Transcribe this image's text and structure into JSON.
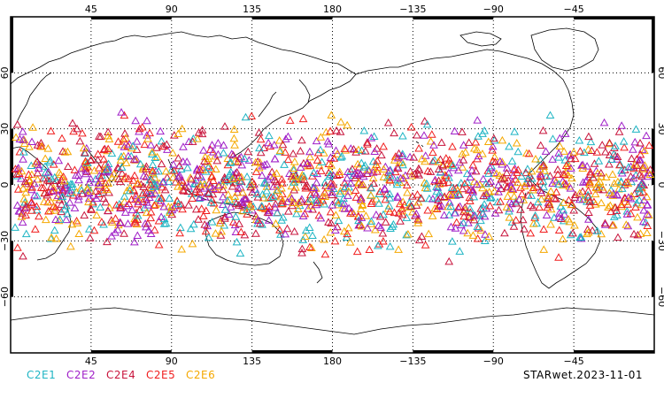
{
  "map": {
    "projection": "cylindrical-equidistant",
    "center_longitude": 180,
    "lon_range": [
      0,
      360
    ],
    "lat_range": [
      -90,
      90
    ],
    "gridlines": "dotted",
    "top_tick_labels": [
      "45",
      "90",
      "135",
      "180",
      "−135",
      "−90",
      "−45"
    ],
    "bottom_tick_labels": [
      "45",
      "90",
      "135",
      "180",
      "−135",
      "−90",
      "−45"
    ],
    "left_tick_labels": [
      "60",
      "30",
      "0",
      "−30",
      "−60"
    ],
    "right_tick_labels": [
      "60",
      "30",
      "0",
      "−30",
      "−60"
    ],
    "marker_shape": "open-triangle",
    "observation_band_lat": [
      -45,
      45
    ]
  },
  "legend": [
    {
      "label": "C2E1",
      "color": "#1fb5c4"
    },
    {
      "label": "C2E2",
      "color": "#a020c8"
    },
    {
      "label": "C2E4",
      "color": "#c8143c"
    },
    {
      "label": "C2E5",
      "color": "#f01e1e"
    },
    {
      "label": "C2E6",
      "color": "#f5a800"
    }
  ],
  "footer": {
    "stamp": "STARwet.2023-11-01"
  }
}
